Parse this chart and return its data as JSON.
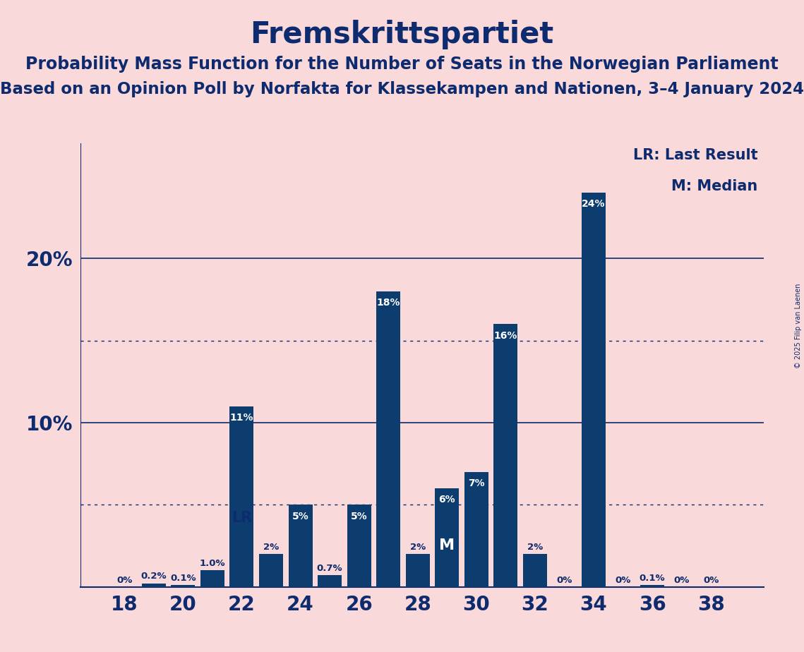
{
  "title": "Fremskrittspartiet",
  "subtitle1": "Probability Mass Function for the Number of Seats in the Norwegian Parliament",
  "subtitle2": "Based on an Opinion Poll by Norfakta for Klassekampen and Nationen, 3–4 January 2024",
  "copyright": "© 2025 Filip van Laenen",
  "xlabel_values": [
    18,
    20,
    22,
    24,
    26,
    28,
    30,
    32,
    34,
    36,
    38
  ],
  "seats": [
    18,
    19,
    20,
    21,
    22,
    23,
    24,
    25,
    26,
    27,
    28,
    29,
    30,
    31,
    32,
    33,
    34,
    35,
    36,
    37,
    38
  ],
  "values": [
    0.0,
    0.2,
    0.1,
    1.0,
    11.0,
    2.0,
    5.0,
    0.7,
    5.0,
    18.0,
    2.0,
    6.0,
    7.0,
    16.0,
    2.0,
    0.0,
    24.0,
    0.0,
    0.1,
    0.0,
    0.0
  ],
  "bar_labels": [
    "0%",
    "0.2%",
    "0.1%",
    "1.0%",
    "11%",
    "2%",
    "5%",
    "0.7%",
    "5%",
    "18%",
    "2%",
    "6%",
    "7%",
    "16%",
    "2%",
    "0%",
    "24%",
    "0%",
    "0.1%",
    "0%",
    "0%"
  ],
  "bar_color": "#0d3d6e",
  "background_color": "#f9d9d9",
  "text_color": "#0d2b6e",
  "title_fontsize": 30,
  "subtitle_fontsize": 17,
  "ylim_max": 27,
  "major_gridlines": [
    10,
    20
  ],
  "dotted_gridlines": [
    5,
    15
  ],
  "lr_seat": 22,
  "median_seat": 29,
  "lr_label": "LR",
  "median_label": "M",
  "legend_lr": "LR: Last Result",
  "legend_m": "M: Median",
  "label_inside_threshold": 4.0,
  "label_inside_color": "#ffffff",
  "label_outside_color": "#0d2b6e",
  "bar_width": 0.82
}
